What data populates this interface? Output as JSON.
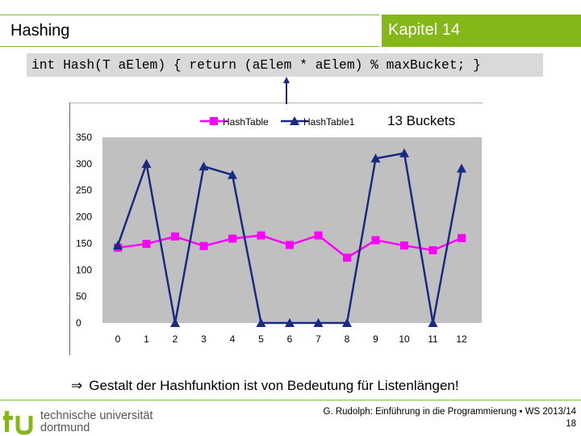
{
  "header": {
    "title": "Hashing",
    "chapter": "Kapitel 14"
  },
  "code": "int Hash(T aElem) { return (aElem * aElem) % maxBucket; }",
  "chart_data": {
    "type": "line",
    "categories": [
      "0",
      "1",
      "2",
      "3",
      "4",
      "5",
      "6",
      "7",
      "8",
      "9",
      "10",
      "11",
      "12"
    ],
    "series": [
      {
        "name": "HashTable",
        "marker": "square",
        "color": "#ff00ff",
        "values": [
          142,
          149,
          163,
          145,
          159,
          165,
          147,
          165,
          123,
          156,
          146,
          137,
          160
        ]
      },
      {
        "name": "HashTable1",
        "marker": "triangle",
        "color": "#1a2a80",
        "values": [
          146,
          300,
          0,
          295,
          279,
          0,
          0,
          0,
          0,
          310,
          320,
          0,
          291
        ]
      }
    ],
    "ylim": [
      0,
      350
    ],
    "yticks": [
      "0",
      "50",
      "100",
      "150",
      "200",
      "250",
      "300",
      "350"
    ],
    "annotation": "13 Buckets",
    "legend_position": "top"
  },
  "conclusion": {
    "arrow": "⇒",
    "text": "Gestalt der Hashfunktion ist von Bedeutung für Listenlängen!"
  },
  "footer": {
    "logo_line1": "technische universität",
    "logo_line2": "dortmund",
    "citation": "G. Rudolph: Einführung in die Programmierung ▪ WS 2013/14",
    "page": "18"
  },
  "colors": {
    "accent": "#84b819",
    "plot_bg": "#c0c0c0"
  }
}
